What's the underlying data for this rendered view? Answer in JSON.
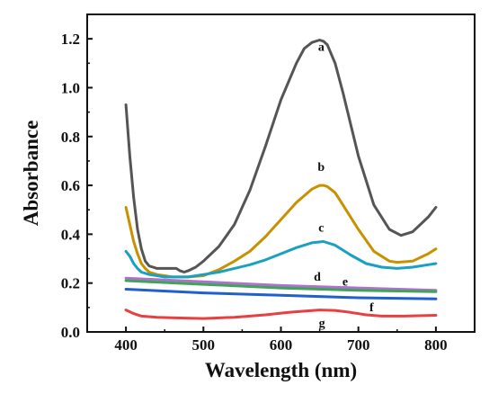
{
  "chart_data": {
    "type": "line",
    "title": "",
    "xlabel": "Wavelength (nm)",
    "ylabel": "Absorbance",
    "xlim": [
      350,
      850
    ],
    "ylim": [
      0.0,
      1.3
    ],
    "xticks": [
      400,
      500,
      600,
      700,
      800
    ],
    "yticks": [
      0.0,
      0.2,
      0.4,
      0.6,
      0.8,
      1.0,
      1.2
    ],
    "xtick_labels": [
      "400",
      "500",
      "600",
      "700",
      "800"
    ],
    "ytick_labels": [
      "0.0",
      "0.2",
      "0.4",
      "0.6",
      "0.8",
      "1.0",
      "1.2"
    ],
    "grid": false,
    "legend": "none",
    "series": [
      {
        "name": "a",
        "color": "#555555",
        "x": [
          400,
          405,
          410,
          415,
          420,
          425,
          430,
          435,
          440,
          450,
          460,
          465,
          470,
          475,
          480,
          490,
          500,
          520,
          540,
          560,
          580,
          600,
          620,
          630,
          640,
          650,
          655,
          660,
          670,
          680,
          700,
          720,
          740,
          755,
          770,
          790,
          800
        ],
        "y": [
          0.93,
          0.72,
          0.55,
          0.42,
          0.34,
          0.29,
          0.27,
          0.265,
          0.26,
          0.26,
          0.26,
          0.26,
          0.25,
          0.245,
          0.25,
          0.265,
          0.29,
          0.35,
          0.44,
          0.58,
          0.76,
          0.95,
          1.1,
          1.16,
          1.185,
          1.195,
          1.19,
          1.175,
          1.1,
          0.98,
          0.72,
          0.52,
          0.42,
          0.395,
          0.41,
          0.47,
          0.51
        ]
      },
      {
        "name": "b",
        "color": "#c99000",
        "x": [
          400,
          405,
          410,
          415,
          420,
          425,
          430,
          440,
          450,
          460,
          480,
          500,
          520,
          540,
          560,
          580,
          600,
          620,
          640,
          650,
          655,
          660,
          670,
          680,
          700,
          720,
          740,
          750,
          770,
          790,
          800
        ],
        "y": [
          0.51,
          0.44,
          0.37,
          0.32,
          0.28,
          0.26,
          0.245,
          0.235,
          0.23,
          0.225,
          0.225,
          0.23,
          0.255,
          0.29,
          0.33,
          0.39,
          0.46,
          0.53,
          0.585,
          0.6,
          0.6,
          0.595,
          0.57,
          0.52,
          0.42,
          0.33,
          0.29,
          0.285,
          0.29,
          0.32,
          0.34
        ]
      },
      {
        "name": "c",
        "color": "#1aa0c0",
        "x": [
          400,
          405,
          410,
          415,
          420,
          430,
          440,
          450,
          460,
          480,
          500,
          520,
          540,
          560,
          580,
          600,
          620,
          640,
          655,
          670,
          690,
          710,
          730,
          750,
          770,
          790,
          800
        ],
        "y": [
          0.33,
          0.31,
          0.28,
          0.26,
          0.245,
          0.235,
          0.23,
          0.225,
          0.225,
          0.225,
          0.235,
          0.245,
          0.26,
          0.275,
          0.295,
          0.32,
          0.345,
          0.365,
          0.37,
          0.355,
          0.315,
          0.28,
          0.265,
          0.26,
          0.265,
          0.275,
          0.28
        ]
      },
      {
        "name": "d",
        "color": "#b070d0",
        "x": [
          400,
          500,
          600,
          700,
          800
        ],
        "y": [
          0.22,
          0.205,
          0.19,
          0.18,
          0.17
        ]
      },
      {
        "name": "e",
        "color": "#3ea558",
        "x": [
          400,
          500,
          600,
          700,
          800
        ],
        "y": [
          0.21,
          0.195,
          0.18,
          0.17,
          0.165
        ]
      },
      {
        "name": "f",
        "color": "#1f5fd0",
        "x": [
          400,
          500,
          600,
          700,
          800
        ],
        "y": [
          0.175,
          0.16,
          0.15,
          0.14,
          0.135
        ]
      },
      {
        "name": "g",
        "color": "#e84040",
        "x": [
          400,
          410,
          420,
          440,
          460,
          500,
          540,
          580,
          610,
          630,
          650,
          670,
          690,
          710,
          730,
          760,
          800
        ],
        "y": [
          0.09,
          0.075,
          0.065,
          0.06,
          0.058,
          0.055,
          0.06,
          0.07,
          0.08,
          0.085,
          0.09,
          0.088,
          0.08,
          0.07,
          0.065,
          0.065,
          0.068
        ]
      }
    ],
    "annotations": [
      {
        "series": "a",
        "text": "a",
        "at": [
          652,
          1.15
        ]
      },
      {
        "series": "b",
        "text": "b",
        "at": [
          652,
          0.66
        ]
      },
      {
        "series": "c",
        "text": "c",
        "at": [
          652,
          0.41
        ]
      },
      {
        "series": "d",
        "text": "d",
        "at": [
          647,
          0.21
        ]
      },
      {
        "series": "e",
        "text": "e",
        "at": [
          683,
          0.19
        ]
      },
      {
        "series": "f",
        "text": "f",
        "at": [
          717,
          0.085
        ]
      },
      {
        "series": "g",
        "text": "g",
        "at": [
          653,
          0.02
        ]
      }
    ]
  }
}
